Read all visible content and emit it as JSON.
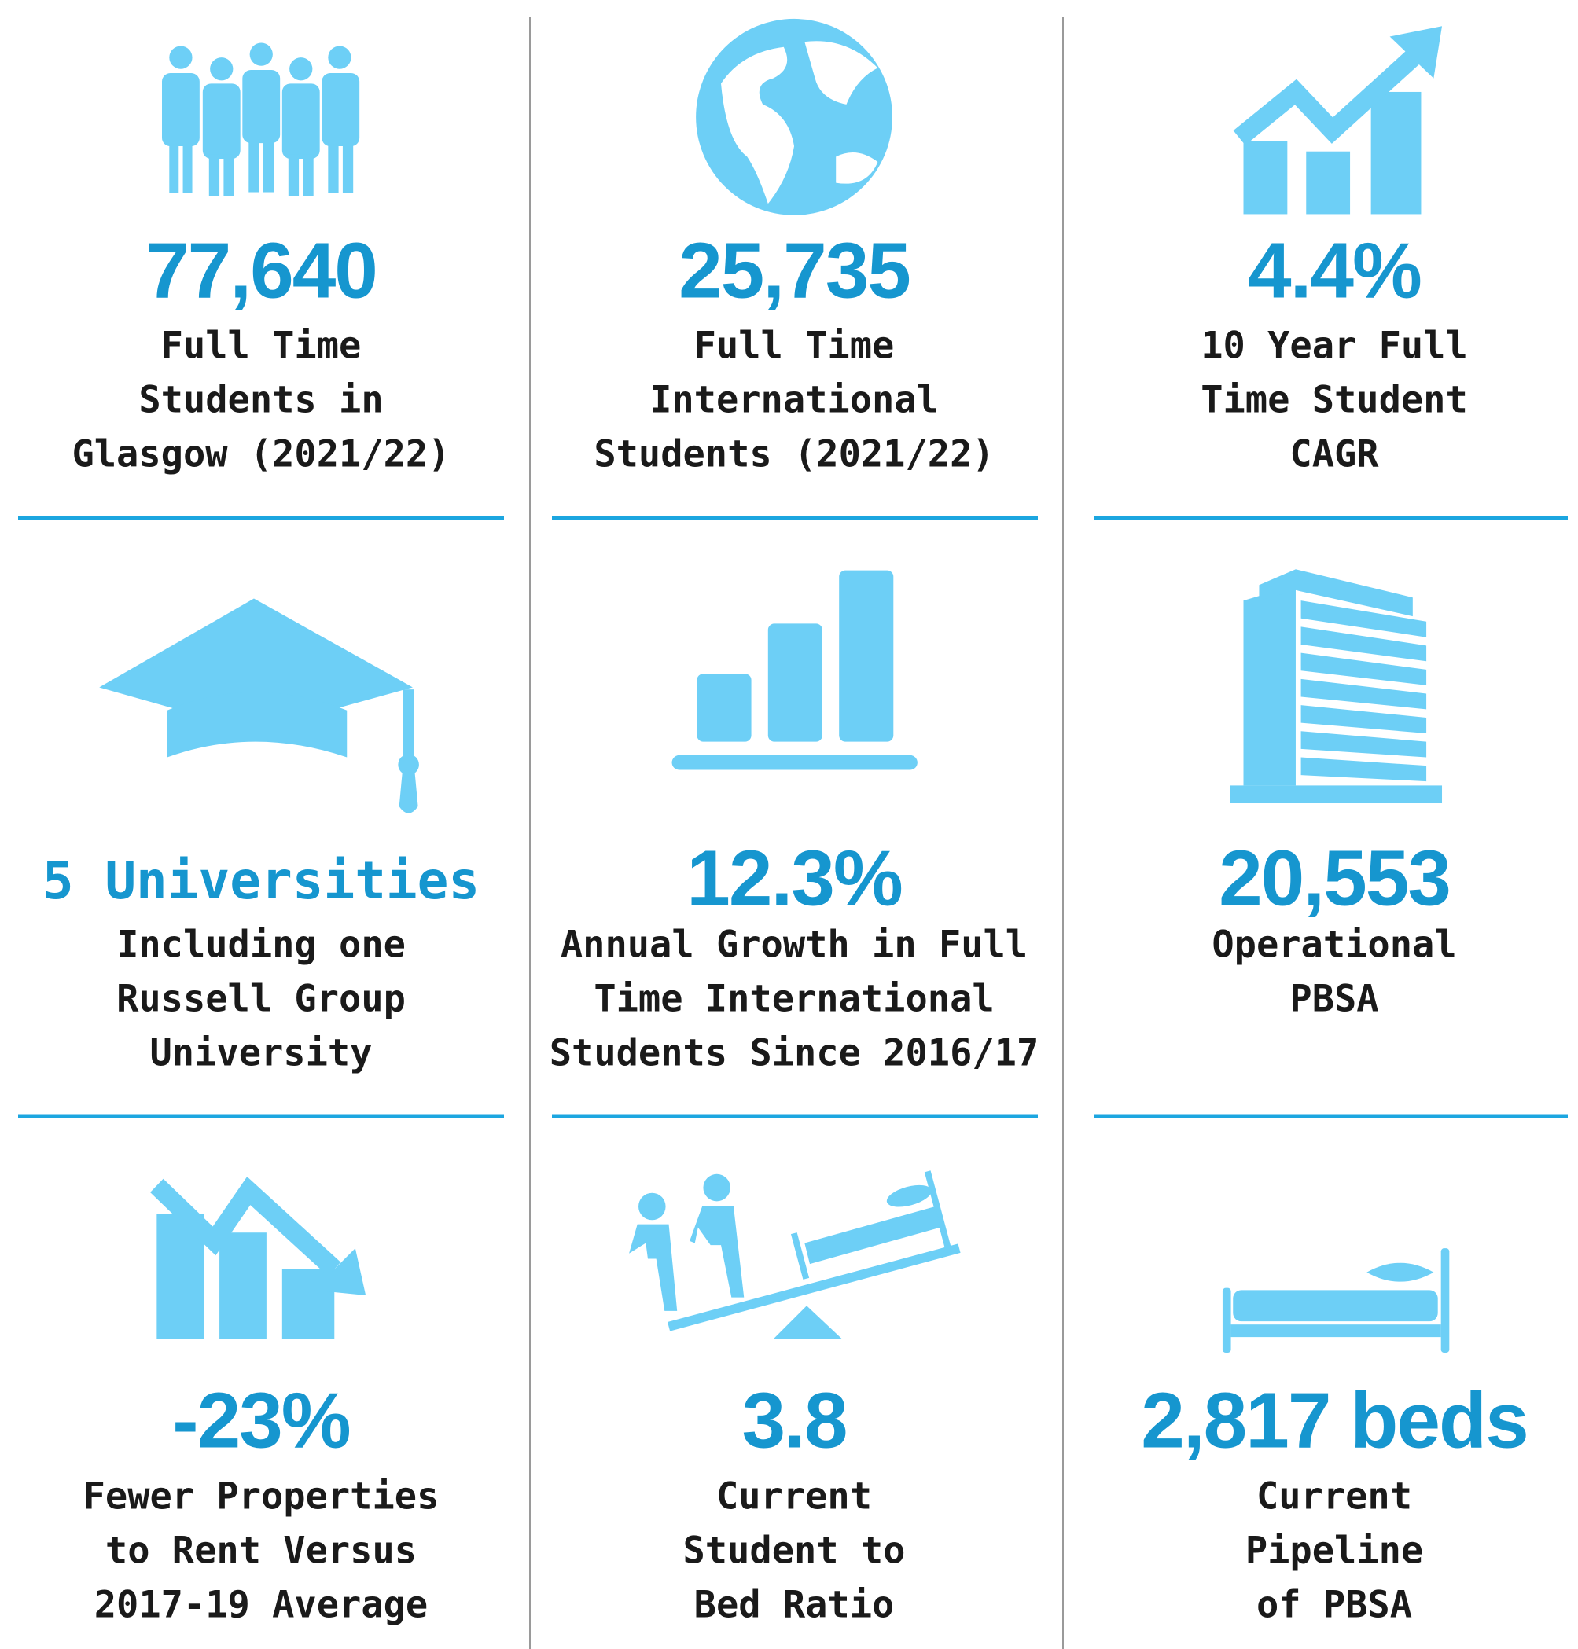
{
  "cells": [
    {
      "value": "77,640",
      "lines": [
        "Full Time",
        "Students in",
        "Glasgow (2021/22)"
      ]
    },
    {
      "value": "25,735",
      "lines": [
        "Full Time",
        "International",
        "Students (2021/22)"
      ]
    },
    {
      "value": "4.4%",
      "lines": [
        "10 Year Full",
        "Time Student",
        "CAGR"
      ]
    },
    {
      "value": "5 Universities",
      "lines": [
        "Including one",
        "Russell Group",
        "University"
      ]
    },
    {
      "value": "12.3%",
      "lines": [
        "Annual Growth in Full",
        "Time International",
        "Students Since 2016/17"
      ]
    },
    {
      "value": "20,553",
      "lines": [
        "Operational",
        "PBSA"
      ]
    },
    {
      "value": "-23%",
      "lines": [
        "Fewer Properties",
        "to Rent Versus",
        "2017-19 Average"
      ]
    },
    {
      "value": "3.8",
      "lines": [
        "Current",
        "Student to",
        "Bed Ratio"
      ]
    },
    {
      "value": "2,817 beds",
      "lines": [
        "Current",
        "Pipeline",
        "of PBSA"
      ]
    }
  ]
}
